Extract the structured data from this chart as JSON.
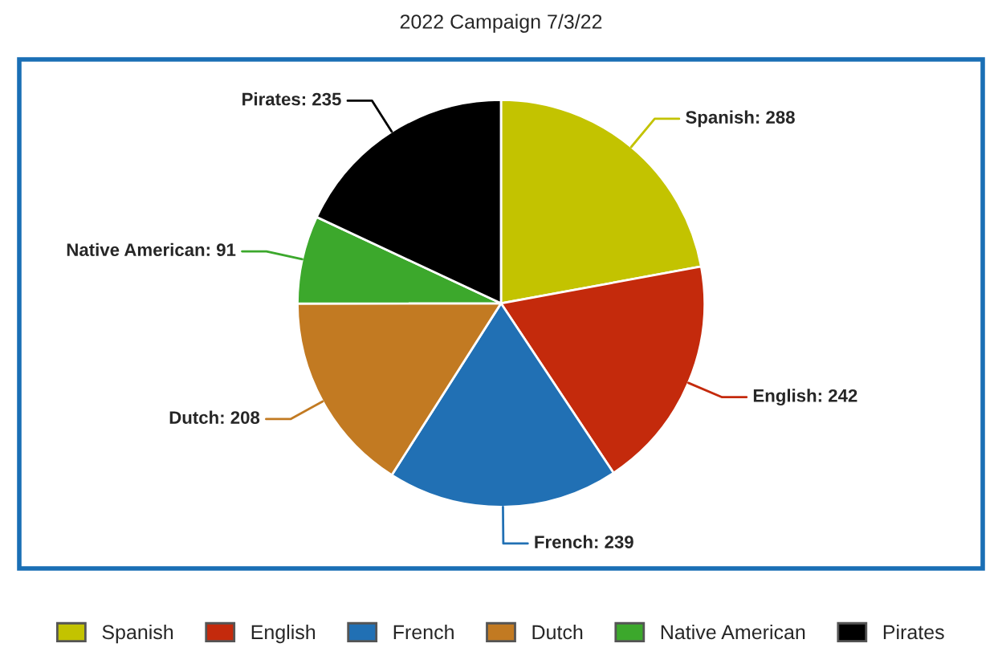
{
  "chart_data": {
    "type": "pie",
    "title": "2022 Campaign 7/3/22",
    "categories": [
      "Spanish",
      "English",
      "French",
      "Dutch",
      "Native American",
      "Pirates"
    ],
    "values": [
      288,
      242,
      239,
      208,
      91,
      235
    ],
    "value_labels": [
      "Spanish: 288",
      "English: 242",
      "French: 239",
      "Dutch: 208",
      "Native American: 91",
      "Pirates: 235"
    ],
    "colors": [
      "#c3c300",
      "#c42a0c",
      "#2170b4",
      "#c27a22",
      "#3ca82c",
      "#000000"
    ],
    "legend": "bottom"
  }
}
